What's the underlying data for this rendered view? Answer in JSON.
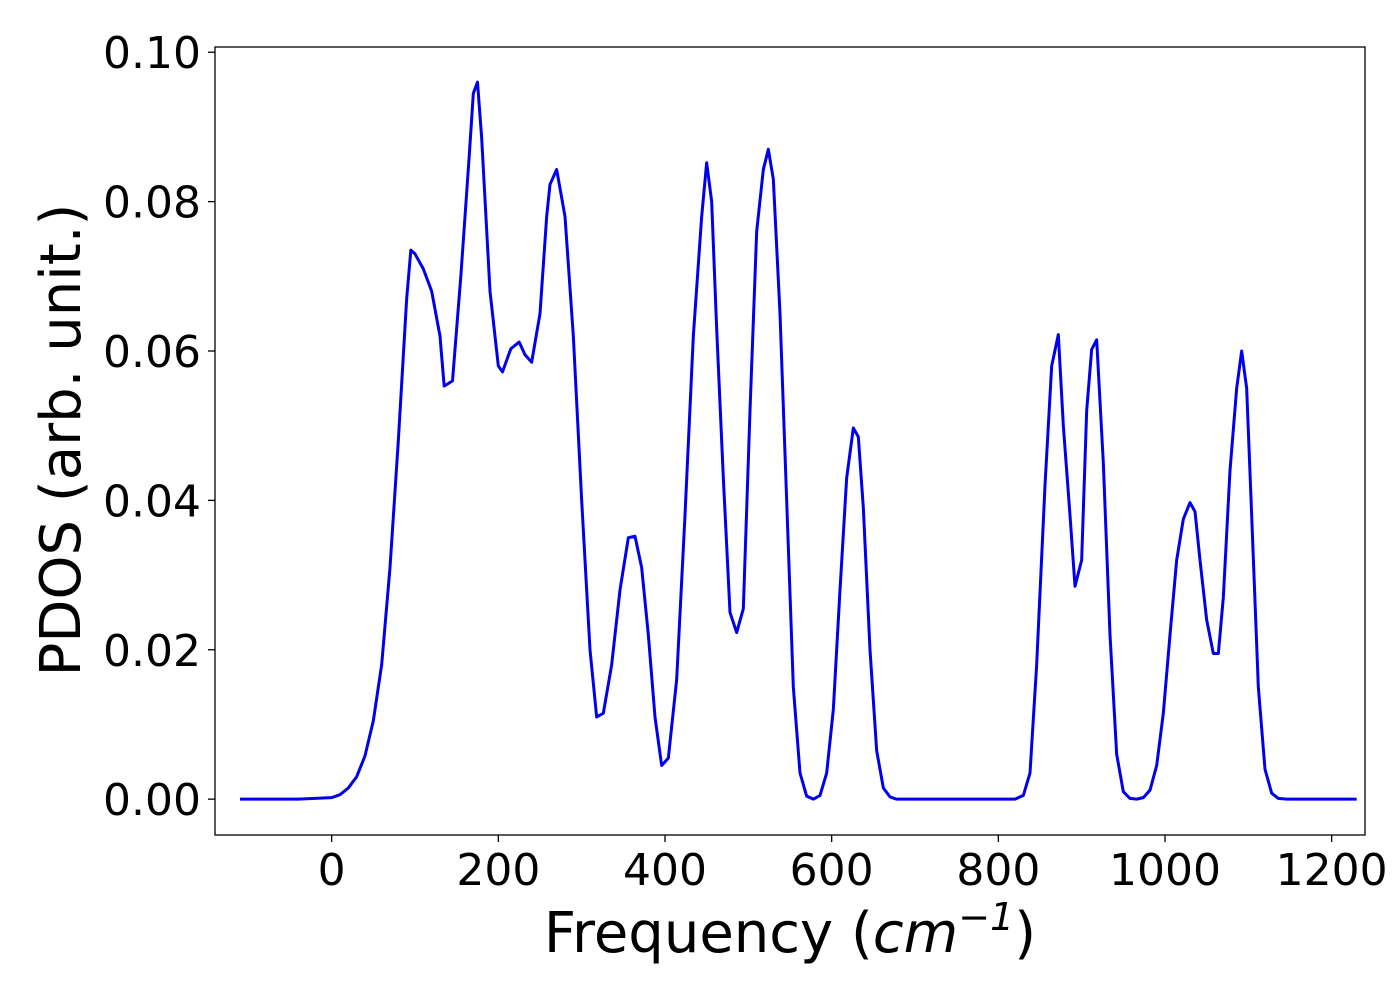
{
  "chart_data": {
    "type": "line",
    "title": "",
    "xlabel": "Frequency ",
    "xlabel_math": {
      "open": "(",
      "base": "cm",
      "sup": "−1",
      "close": ")"
    },
    "ylabel": "PDOS (arb. unit.)",
    "xlim": [
      -140,
      1240
    ],
    "ylim": [
      -0.0048,
      0.1007
    ],
    "xticks": [
      0,
      200,
      400,
      600,
      800,
      1000,
      1200
    ],
    "xtick_labels": [
      "0",
      "200",
      "400",
      "600",
      "800",
      "1000",
      "1200"
    ],
    "yticks": [
      0.0,
      0.02,
      0.04,
      0.06,
      0.08,
      0.1
    ],
    "ytick_labels": [
      "0.00",
      "0.02",
      "0.04",
      "0.06",
      "0.08",
      "0.10"
    ],
    "grid": false,
    "legend": "none",
    "series": [
      {
        "color": "#0000ee",
        "x": [
          -110,
          -40,
          0,
          10,
          20,
          30,
          40,
          50,
          60,
          70,
          80,
          90,
          95,
          100,
          110,
          120,
          130,
          135,
          145,
          155,
          165,
          170,
          175,
          180,
          190,
          200,
          205,
          215,
          225,
          232,
          240,
          250,
          258,
          262,
          270,
          280,
          290,
          300,
          310,
          318,
          326,
          336,
          346,
          356,
          364,
          372,
          380,
          388,
          396,
          404,
          414,
          424,
          434,
          444,
          450,
          456,
          462,
          470,
          478,
          486,
          494,
          502,
          510,
          518,
          524,
          530,
          538,
          546,
          554,
          562,
          570,
          578,
          586,
          594,
          602,
          610,
          618,
          626,
          632,
          638,
          646,
          654,
          662,
          670,
          678,
          690,
          700,
          800,
          820,
          830,
          838,
          846,
          856,
          864,
          872,
          878,
          886,
          892,
          900,
          906,
          912,
          918,
          926,
          934,
          942,
          950,
          958,
          966,
          974,
          982,
          990,
          998,
          1006,
          1014,
          1022,
          1030,
          1036,
          1042,
          1050,
          1058,
          1064,
          1070,
          1078,
          1086,
          1092,
          1098,
          1104,
          1112,
          1120,
          1128,
          1136,
          1146,
          1160,
          1230
        ],
        "y": [
          0.0,
          0.0,
          0.0002,
          0.0006,
          0.0015,
          0.003,
          0.0058,
          0.0105,
          0.018,
          0.031,
          0.048,
          0.067,
          0.0735,
          0.073,
          0.071,
          0.068,
          0.062,
          0.0553,
          0.056,
          0.07,
          0.086,
          0.0945,
          0.096,
          0.0885,
          0.068,
          0.058,
          0.0572,
          0.0603,
          0.0612,
          0.0595,
          0.0585,
          0.065,
          0.078,
          0.0823,
          0.0843,
          0.078,
          0.062,
          0.04,
          0.02,
          0.011,
          0.0115,
          0.018,
          0.028,
          0.035,
          0.0352,
          0.031,
          0.022,
          0.011,
          0.0045,
          0.0055,
          0.016,
          0.038,
          0.062,
          0.078,
          0.0852,
          0.08,
          0.063,
          0.043,
          0.025,
          0.0223,
          0.0255,
          0.052,
          0.076,
          0.0843,
          0.087,
          0.083,
          0.065,
          0.04,
          0.015,
          0.0035,
          0.0004,
          0.0,
          0.0005,
          0.0035,
          0.012,
          0.028,
          0.043,
          0.0497,
          0.0485,
          0.039,
          0.02,
          0.0065,
          0.0015,
          0.0003,
          0.0,
          0.0,
          0.0,
          0.0,
          0.0,
          0.0005,
          0.0035,
          0.018,
          0.042,
          0.058,
          0.0622,
          0.05,
          0.038,
          0.0285,
          0.032,
          0.052,
          0.0602,
          0.0615,
          0.045,
          0.022,
          0.006,
          0.001,
          0.0001,
          0.0,
          0.0002,
          0.0012,
          0.0045,
          0.0115,
          0.022,
          0.032,
          0.0375,
          0.0397,
          0.0385,
          0.032,
          0.024,
          0.0195,
          0.0195,
          0.027,
          0.044,
          0.055,
          0.06,
          0.055,
          0.038,
          0.015,
          0.004,
          0.0008,
          0.0001,
          0.0,
          0.0,
          0.0
        ]
      }
    ]
  }
}
